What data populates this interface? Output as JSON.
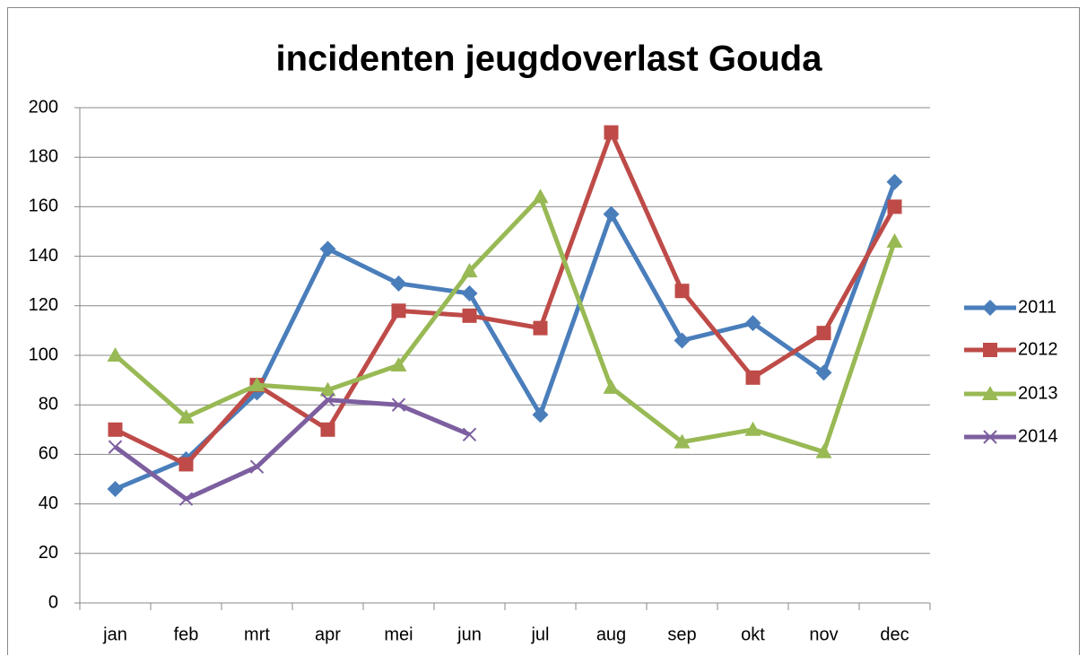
{
  "chart_data": {
    "type": "line",
    "title": "incidenten jeugdoverlast Gouda",
    "categories": [
      "jan",
      "feb",
      "mrt",
      "apr",
      "mei",
      "jun",
      "jul",
      "aug",
      "sep",
      "okt",
      "nov",
      "dec"
    ],
    "series": [
      {
        "name": "2011",
        "color": "#4a7ebb",
        "marker": "diamond",
        "values": [
          46,
          58,
          85,
          143,
          129,
          125,
          76,
          157,
          106,
          113,
          93,
          170
        ]
      },
      {
        "name": "2012",
        "color": "#be4b48",
        "marker": "square",
        "values": [
          70,
          56,
          88,
          70,
          118,
          116,
          111,
          190,
          126,
          91,
          109,
          160
        ]
      },
      {
        "name": "2013",
        "color": "#98b954",
        "marker": "triangle",
        "values": [
          100,
          75,
          88,
          86,
          96,
          134,
          164,
          87,
          65,
          70,
          61,
          146
        ]
      },
      {
        "name": "2014",
        "color": "#7d5fa0",
        "marker": "x",
        "values": [
          63,
          42,
          55,
          82,
          80,
          68,
          null,
          null,
          null,
          null,
          null,
          null
        ]
      }
    ],
    "ylim": [
      0,
      200
    ],
    "yticks": [
      0,
      20,
      40,
      60,
      80,
      100,
      120,
      140,
      160,
      180,
      200
    ],
    "grid": true,
    "legend": "right"
  }
}
